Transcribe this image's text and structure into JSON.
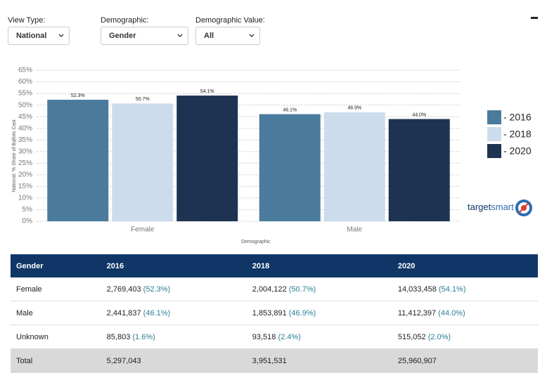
{
  "controls": [
    {
      "label": "View Type:",
      "value": "National"
    },
    {
      "label": "Demographic:",
      "value": "Gender"
    },
    {
      "label": "Demographic Value:",
      "value": "All"
    }
  ],
  "chart_data": {
    "type": "bar",
    "x_label": "Demographic",
    "y_label": "National: % Share of Ballots Cast",
    "categories": [
      "Female",
      "Male"
    ],
    "series": [
      {
        "name": "- 2016",
        "color": "#4a7b9d",
        "values": [
          52.3,
          46.1
        ],
        "value_labels": [
          "52.3%",
          "46.1%"
        ]
      },
      {
        "name": "- 2018",
        "color": "#cddcec",
        "values": [
          50.7,
          46.9
        ],
        "value_labels": [
          "50.7%",
          "46.9%"
        ]
      },
      {
        "name": "- 2020",
        "color": "#1e3352",
        "values": [
          54.1,
          44.0
        ],
        "value_labels": [
          "54.1%",
          "44.0%"
        ]
      }
    ],
    "ylim": [
      0,
      65
    ],
    "yticks": [
      {
        "value": 0,
        "label": "0%"
      },
      {
        "value": 5,
        "label": "5%"
      },
      {
        "value": 10,
        "label": "10%"
      },
      {
        "value": 15,
        "label": "15%"
      },
      {
        "value": 20,
        "label": "20%"
      },
      {
        "value": 25,
        "label": "25%"
      },
      {
        "value": 30,
        "label": "30%"
      },
      {
        "value": 35,
        "label": "35%"
      },
      {
        "value": 40,
        "label": "40%"
      },
      {
        "value": 45,
        "label": "45%"
      },
      {
        "value": 50,
        "label": "50%"
      },
      {
        "value": 55,
        "label": "55%"
      },
      {
        "value": 60,
        "label": "60%"
      },
      {
        "value": 65,
        "label": "65%"
      }
    ],
    "grid": true,
    "legend": "right"
  },
  "brand": [
    "target",
    "smart"
  ],
  "table": {
    "header": [
      "Gender",
      "2016",
      "2018",
      "2020"
    ],
    "rows": [
      [
        "Female",
        {
          "count": "2,769,403",
          "share": "(52.3%)"
        },
        {
          "count": "2,004,122",
          "share": "(50.7%)"
        },
        {
          "count": "14,033,458",
          "share": "(54.1%)"
        }
      ],
      [
        "Male",
        {
          "count": "2,441,837",
          "share": "(46.1%)"
        },
        {
          "count": "1,853,891",
          "share": "(46.9%)"
        },
        {
          "count": "11,412,397",
          "share": "(44.0%)"
        }
      ],
      [
        "Unknown",
        {
          "count": "85,803",
          "share": "(1.6%)"
        },
        {
          "count": "93,518",
          "share": "(2.4%)"
        },
        {
          "count": "515,052",
          "share": "(2.0%)"
        }
      ],
      [
        "Total",
        "5,297,043",
        "3,951,531",
        "25,960,907"
      ]
    ]
  }
}
